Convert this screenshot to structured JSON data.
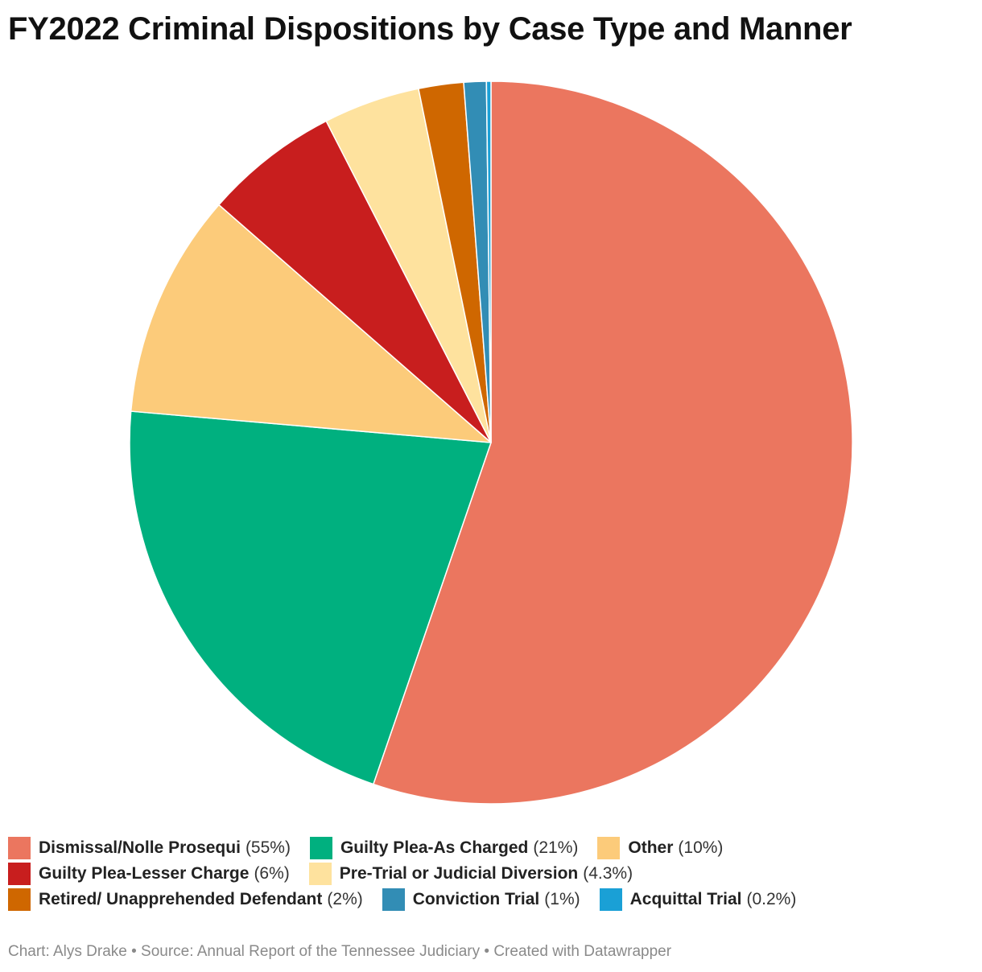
{
  "title": "FY2022 Criminal Dispositions by Case Type and Manner",
  "footer": "Chart: Alys Drake • Source: Annual Report of the Tennessee Judiciary  • Created with Datawrapper",
  "chart_data": {
    "type": "pie",
    "title": "FY2022 Criminal Dispositions by Case Type and Manner",
    "legend_position": "bottom",
    "slices": [
      {
        "label": "Dismissal/Nolle Prosequi",
        "value": 55,
        "display": "(55%)",
        "color": "#eb765f"
      },
      {
        "label": "Guilty Plea-As Charged",
        "value": 21,
        "display": "(21%)",
        "color": "#00b07f"
      },
      {
        "label": "Other",
        "value": 10,
        "display": "(10%)",
        "color": "#fccb7a"
      },
      {
        "label": "Guilty Plea-Lesser Charge",
        "value": 6,
        "display": "(6%)",
        "color": "#c81e1e"
      },
      {
        "label": "Pre-Trial or Judicial Diversion",
        "value": 4.3,
        "display": "(4.3%)",
        "color": "#fee29e"
      },
      {
        "label": "Retired/ Unapprehended Defendant",
        "value": 2,
        "display": "(2%)",
        "color": "#cf6700"
      },
      {
        "label": "Conviction Trial",
        "value": 1,
        "display": "(1%)",
        "color": "#328db5"
      },
      {
        "label": "Acquittal Trial",
        "value": 0.2,
        "display": "(0.2%)",
        "color": "#1aa0d6"
      }
    ]
  }
}
